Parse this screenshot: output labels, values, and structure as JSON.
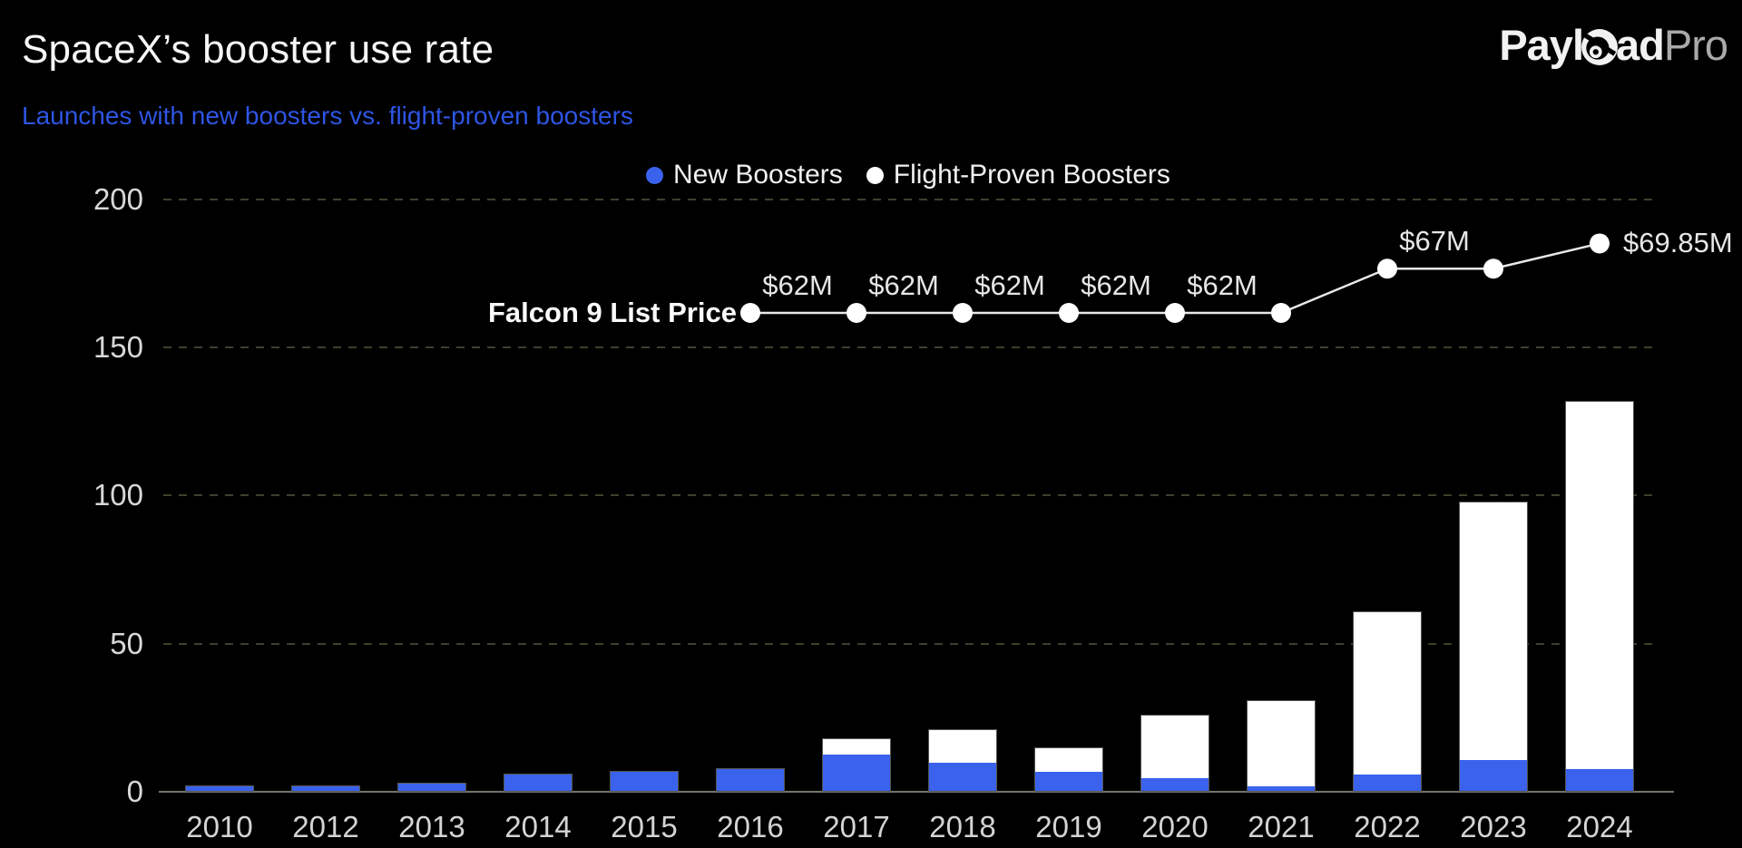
{
  "header": {
    "title": "SpaceX’s booster use rate",
    "subtitle": "Launches with new boosters vs. flight-proven boosters"
  },
  "logo": {
    "text_main_a": "Payl",
    "text_main_b": "ad",
    "text_light": "Pro",
    "icon": "astronaut-helmet-icon"
  },
  "legend": [
    {
      "label": "New Boosters",
      "color": "#3a62ec"
    },
    {
      "label": "Flight-Proven Boosters",
      "color": "#ffffff"
    }
  ],
  "colors": {
    "background": "#000000",
    "accent_blue": "#3a62ec",
    "subtitle_blue": "#2e55e3",
    "white_series": "#ffffff",
    "grid": "#3e402e",
    "axis": "#73746b",
    "price_line": "#e8e8e8"
  },
  "chart_data": {
    "type": "bar",
    "stacked": true,
    "title": "SpaceX’s booster use rate",
    "subtitle": "Launches with new boosters vs. flight-proven boosters",
    "categories": [
      "2010",
      "2012",
      "2013",
      "2014",
      "2015",
      "2016",
      "2017",
      "2018",
      "2019",
      "2020",
      "2021",
      "2022",
      "2023",
      "2024"
    ],
    "series": [
      {
        "name": "New Boosters",
        "color": "#3a62ec",
        "values": [
          2,
          2,
          3,
          6,
          7,
          8,
          13,
          10,
          7,
          5,
          2,
          6,
          11,
          8
        ]
      },
      {
        "name": "Flight-Proven Boosters",
        "color": "#ffffff",
        "values": [
          0,
          0,
          0,
          0,
          0,
          0,
          5,
          11,
          8,
          21,
          29,
          55,
          87,
          124
        ]
      }
    ],
    "totals": [
      2,
      2,
      3,
      6,
      7,
      8,
      18,
      21,
      15,
      26,
      31,
      61,
      98,
      132
    ],
    "xlabel": "",
    "ylabel": "",
    "ylim": [
      0,
      200
    ],
    "yticks": [
      0,
      50,
      100,
      150,
      200
    ],
    "grid": "horizontal dashed",
    "legend_position": "top center",
    "overlay_line": {
      "name": "Falcon 9 List Price",
      "x": [
        "2016",
        "2017",
        "2018",
        "2019",
        "2020",
        "2021",
        "2022",
        "2023",
        "2024"
      ],
      "values_musd": [
        62,
        62,
        62,
        62,
        62,
        62,
        67,
        67,
        69.85
      ],
      "point_labels": [
        "$62M",
        "$62M",
        "$62M",
        "$62M",
        "$62M",
        "",
        "$67M",
        "",
        "$69.85M"
      ]
    }
  }
}
